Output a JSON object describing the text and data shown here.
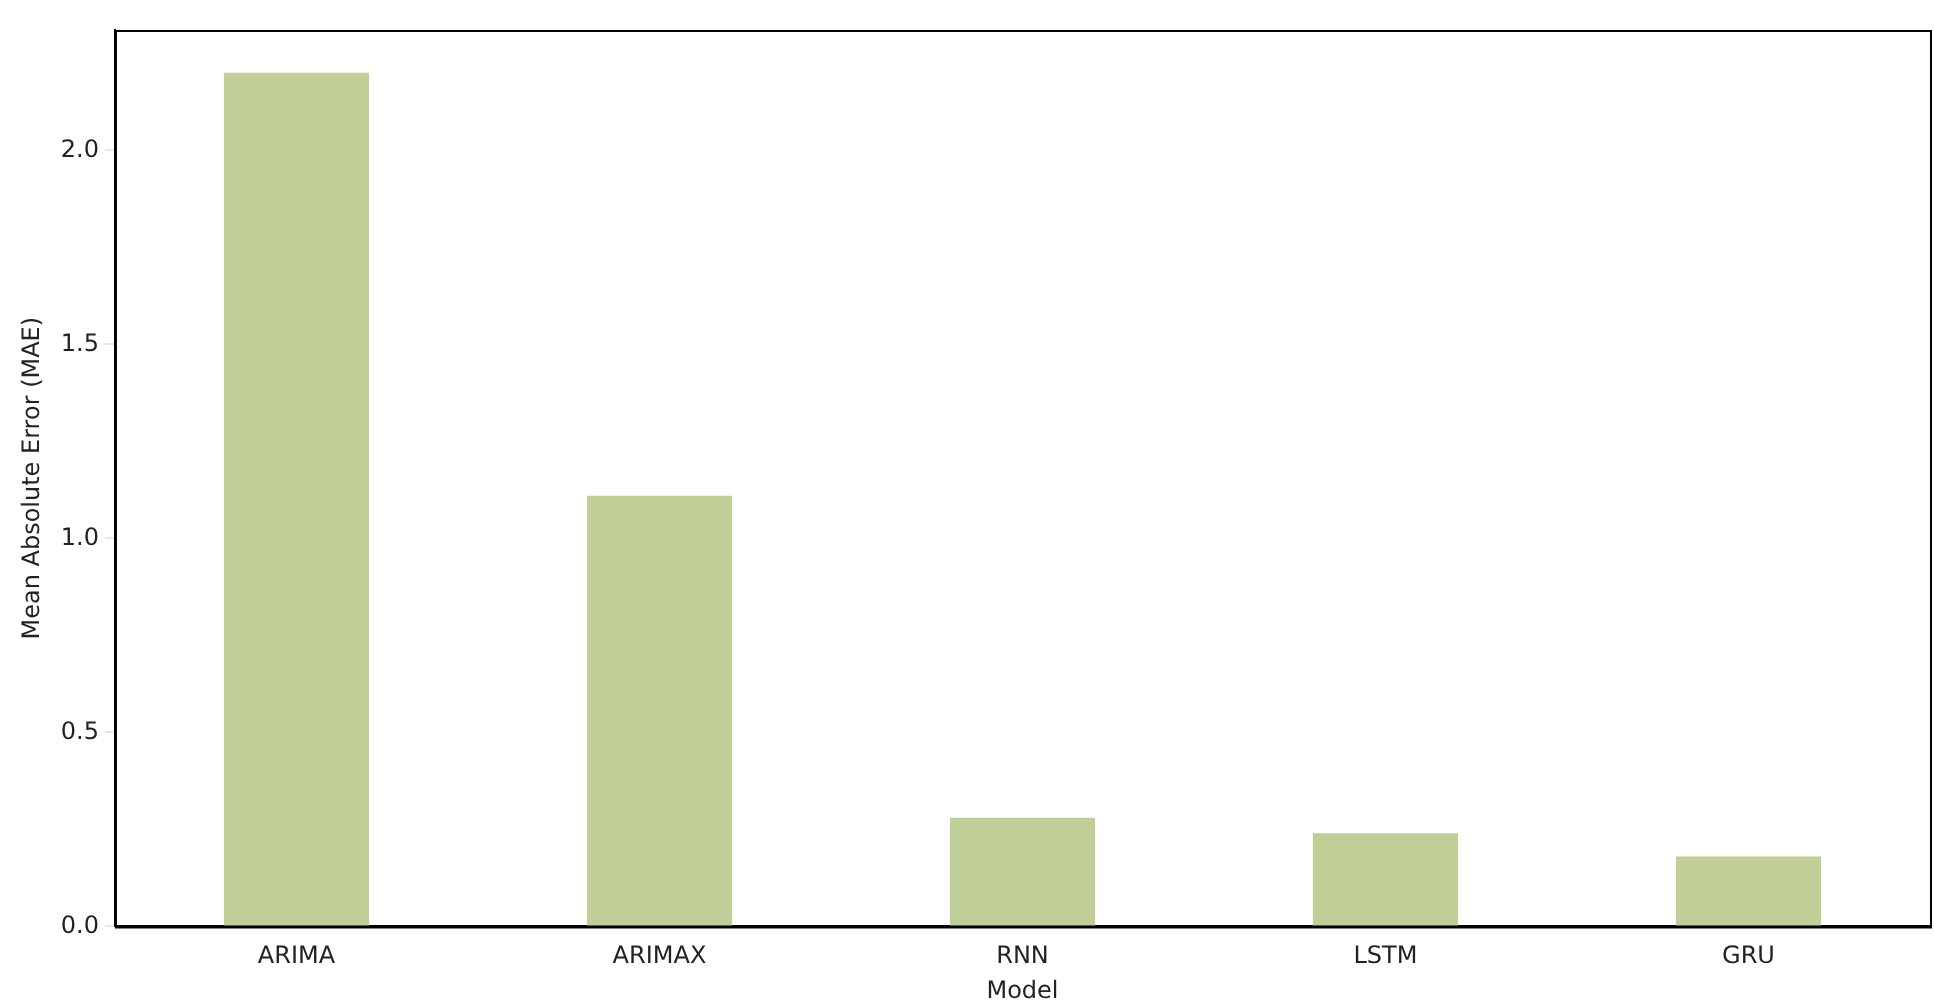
{
  "chart_data": {
    "type": "bar",
    "xlabel": "Model",
    "ylabel": "Mean Absolute Error (MAE)",
    "categories": [
      "ARIMA",
      "ARIMAX",
      "RNN",
      "LSTM",
      "GRU"
    ],
    "values": [
      2.2,
      1.11,
      0.28,
      0.24,
      0.18
    ],
    "color": "#c0ce97",
    "ylim": [
      0,
      2.31
    ],
    "yticks": [
      {
        "value": 0,
        "label": "0.0"
      },
      {
        "value": 0.5,
        "label": "0.5"
      },
      {
        "value": 1,
        "label": "1.0"
      },
      {
        "value": 1.5,
        "label": "1.5"
      },
      {
        "value": 2,
        "label": "2.0"
      }
    ],
    "grid": false,
    "legend": false
  }
}
